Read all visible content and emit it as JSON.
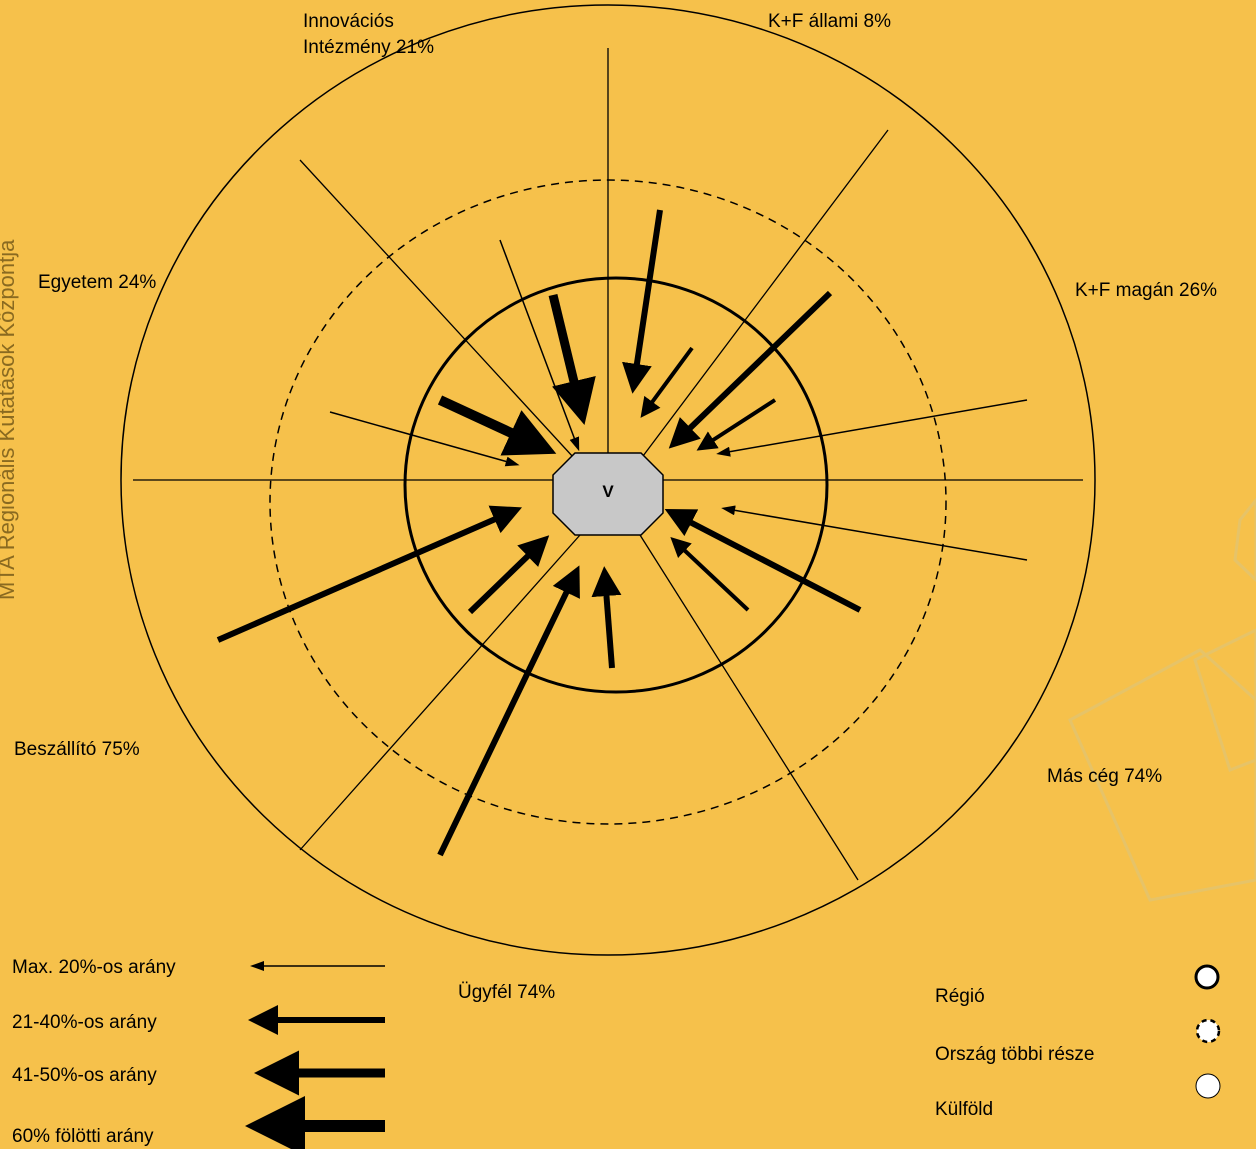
{
  "side_text": "MTA Regionális Kutatások Központja",
  "center": "V",
  "segments": [
    {
      "label": [
        "Innovációs",
        "Intézmény 21%"
      ]
    },
    {
      "label": [
        "K+F állami 8%"
      ]
    },
    {
      "label": [
        "Egyetem 24%"
      ]
    },
    {
      "label": [
        "K+F magán 26%"
      ]
    },
    {
      "label": [
        "Beszállító 75%"
      ]
    },
    {
      "label": [
        "Más cég 74%"
      ]
    },
    {
      "label": [
        "Ügyfél 74%"
      ]
    }
  ],
  "arrow_legend": [
    "Max. 20%-os arány",
    "21-40%-os arány",
    "41-50%-os arány",
    "60% fölötti arány"
  ],
  "circle_legend": [
    "Régió",
    "Ország többi része",
    "Külföld"
  ]
}
